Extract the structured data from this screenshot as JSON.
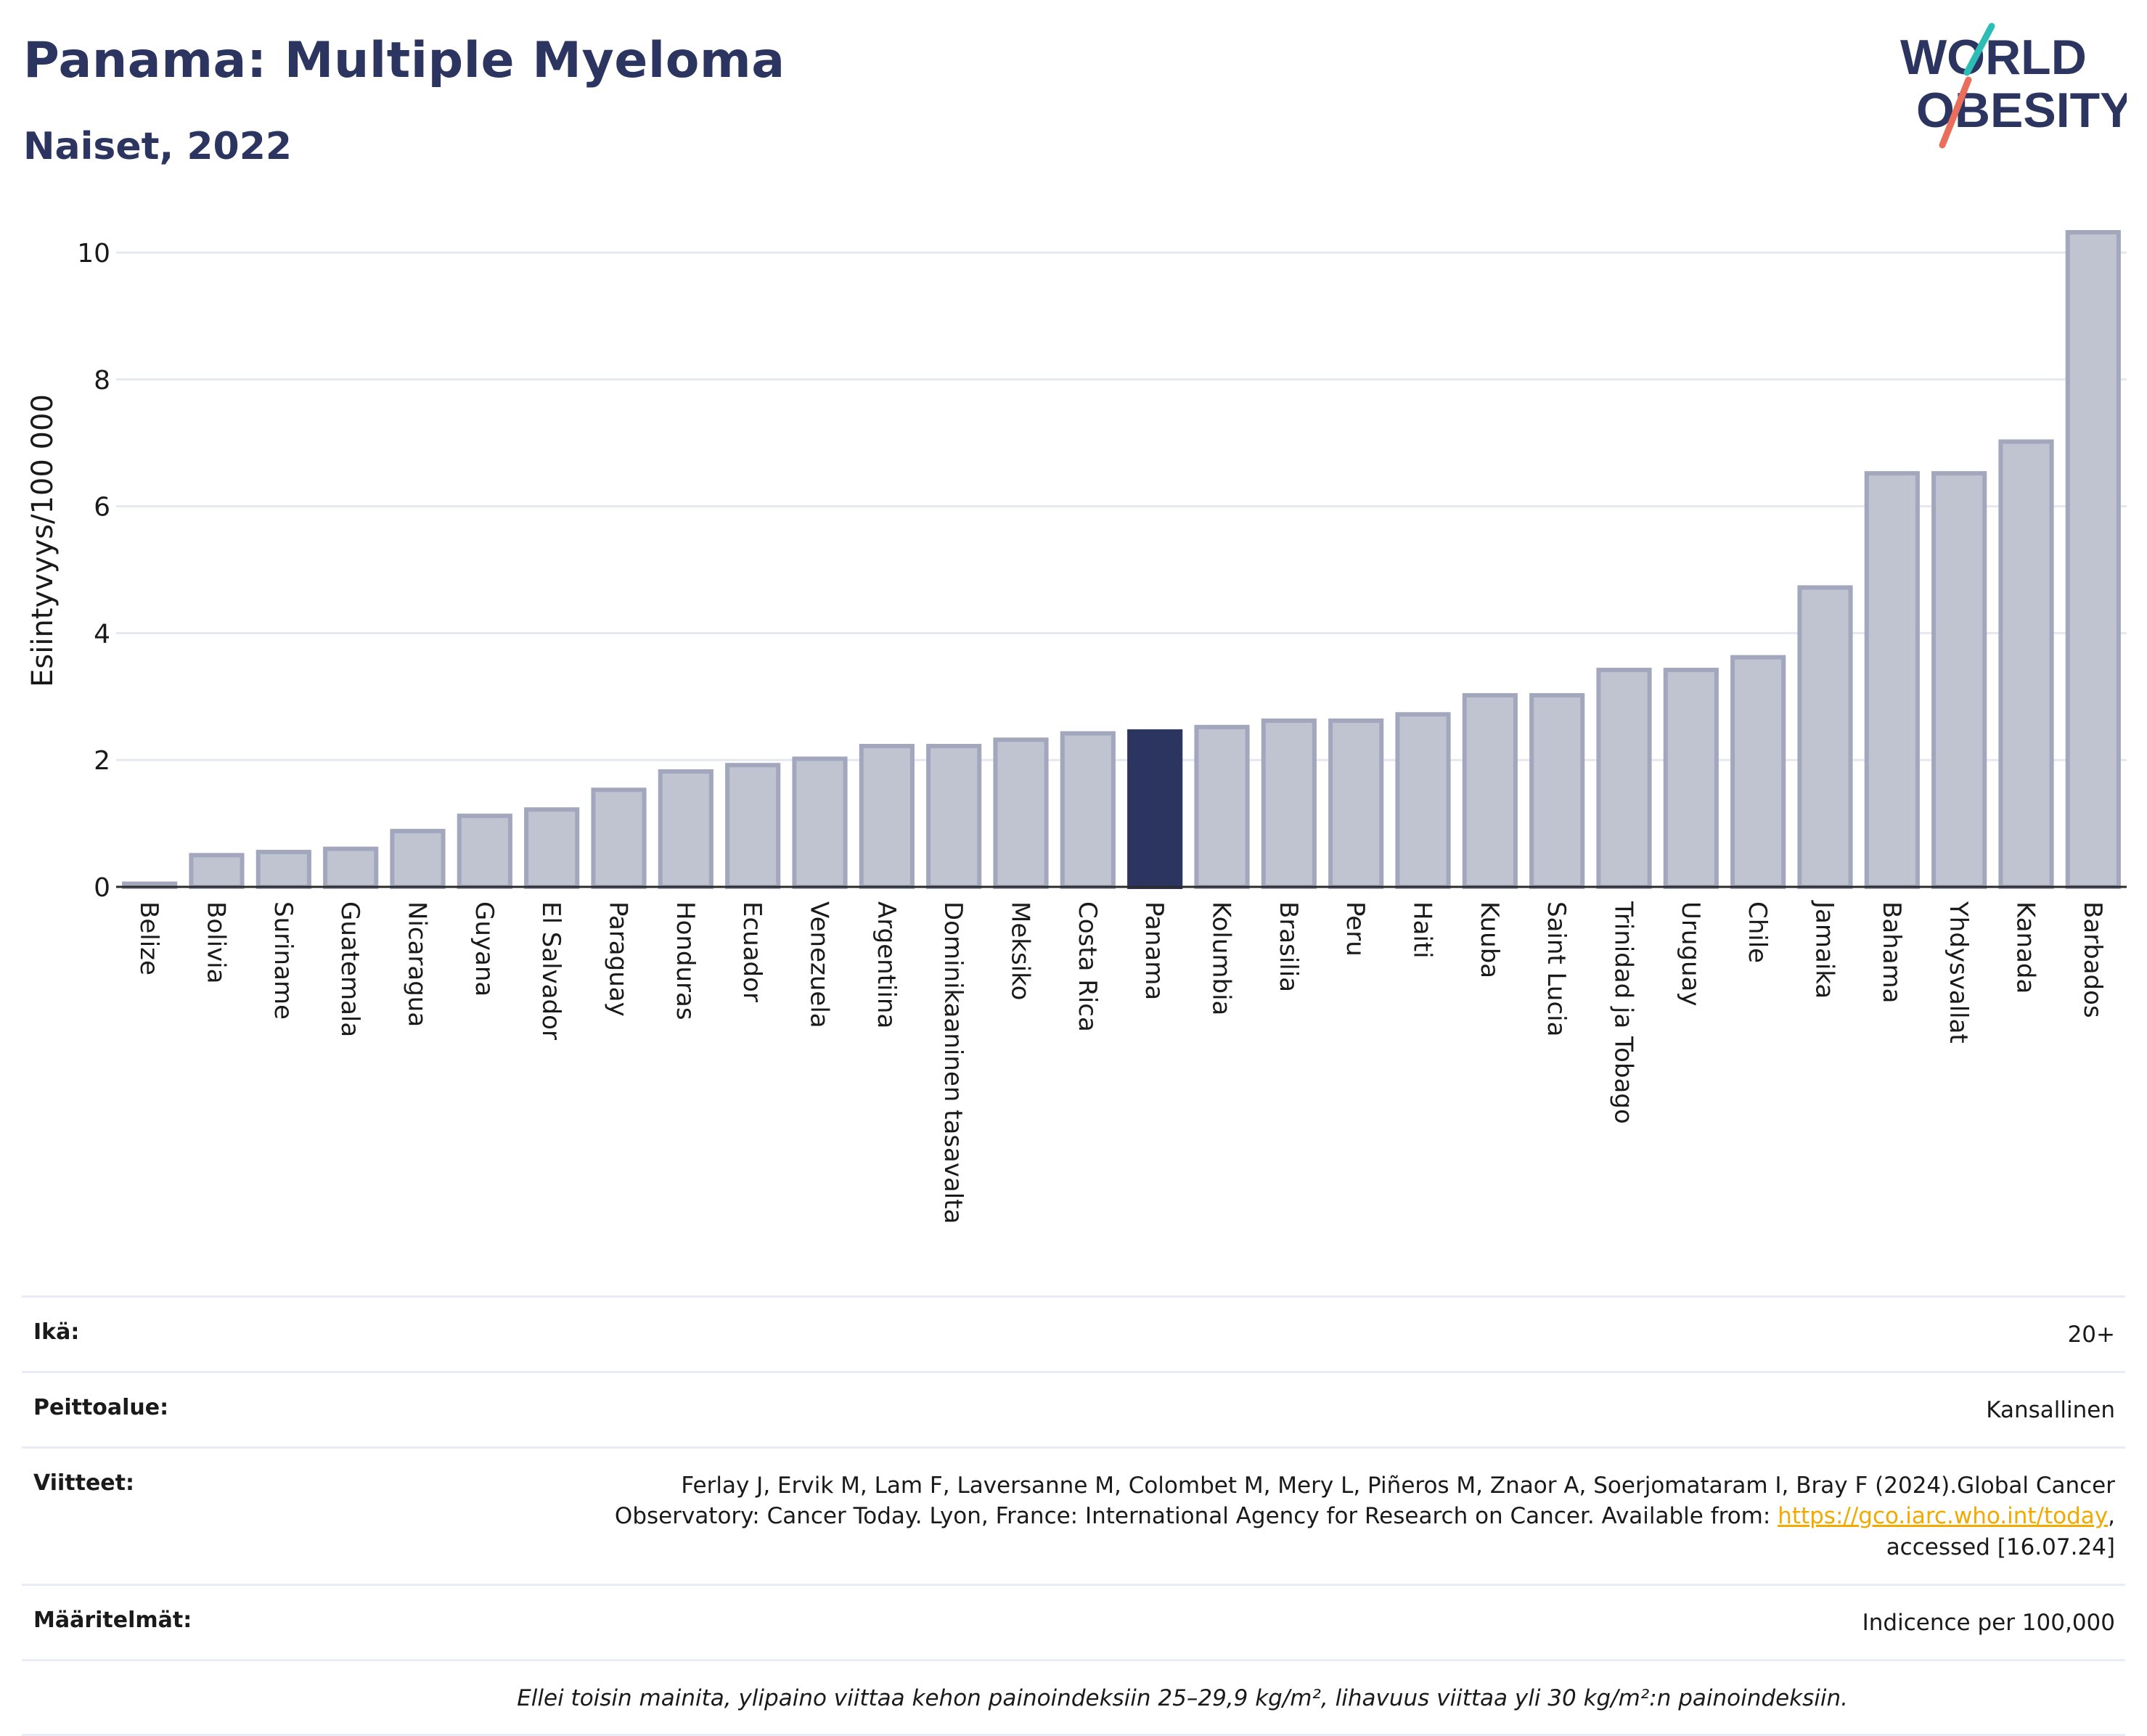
{
  "header": {
    "title": "Panama: Multiple Myeloma",
    "subtitle": "Naiset, 2022"
  },
  "logo": {
    "line1": "WORLD",
    "line2": "OBESITY"
  },
  "colors": {
    "bar": "#c0c3d0",
    "bar_border": "#a2a7bd",
    "highlight": "#2b3560",
    "grid": "#e6e8ef",
    "logo_text": "#2b3560",
    "logo_teal": "#2ebdb4",
    "logo_coral": "#ea6e5c"
  },
  "chart_data": {
    "type": "bar",
    "ylabel": "Esiintyvyys/100 000",
    "ylim": [
      0,
      10.5
    ],
    "yticks": [
      0,
      2,
      4,
      6,
      8,
      10
    ],
    "grid": true,
    "highlight": "Panama",
    "categories": [
      "Belize",
      "Bolivia",
      "Suriname",
      "Guatemala",
      "Nicaragua",
      "Guyana",
      "El Salvador",
      "Paraguay",
      "Honduras",
      "Ecuador",
      "Venezuela",
      "Argentiina",
      "Dominikaaninen tasavalta",
      "Meksiko",
      "Costa Rica",
      "Panama",
      "Kolumbia",
      "Brasilia",
      "Peru",
      "Haiti",
      "Kuuba",
      "Saint Lucia",
      "Trinidad ja Tobago",
      "Uruguay",
      "Chile",
      "Jamaika",
      "Bahama",
      "Yhdysvallat",
      "Kanada",
      "Barbados"
    ],
    "values": [
      0.05,
      0.5,
      0.55,
      0.6,
      0.88,
      1.12,
      1.22,
      1.53,
      1.82,
      1.92,
      2.02,
      2.22,
      2.22,
      2.32,
      2.42,
      2.45,
      2.52,
      2.62,
      2.62,
      2.72,
      3.02,
      3.02,
      3.42,
      3.42,
      3.62,
      4.72,
      6.52,
      6.52,
      7.02,
      10.32
    ]
  },
  "meta": {
    "age_label": "Ikä:",
    "age_value": "20+",
    "coverage_label": "Peittoalue:",
    "coverage_value": "Kansallinen",
    "references_label": "Viitteet:",
    "references_text_1": "Ferlay J, Ervik M, Lam F, Laversanne M, Colombet M, Mery L, Piñeros M, Znaor A, Soerjomataram I, Bray F (2024).Global Cancer",
    "references_text_2": "Observatory: Cancer Today. Lyon, France: International Agency for Research on Cancer. Available from:",
    "references_link": "https://gco.iarc.who.int/today",
    "references_text_3": ",",
    "references_text_4": "accessed [16.07.24]",
    "definitions_label": "Määritelmät:",
    "definitions_value": "Indicence per 100,000",
    "note": "Ellei toisin mainita, ylipaino viittaa kehon painoindeksiin 25–29,9 kg/m², lihavuus viittaa yli 30 kg/m²:n painoindeksiin."
  }
}
